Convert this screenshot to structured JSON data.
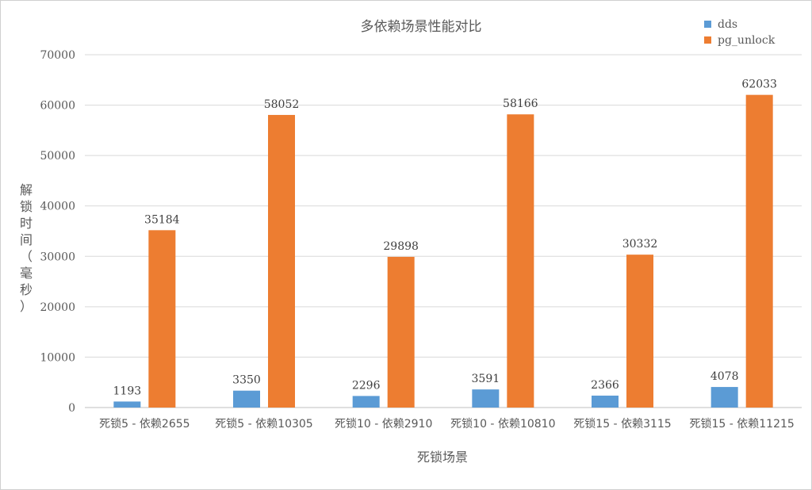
{
  "chart_data": {
    "type": "bar",
    "title": "多依赖场景性能对比",
    "xlabel": "死锁场景",
    "ylabel": "解锁时间（毫秒）",
    "categories": [
      "死锁5 - 依赖2655",
      "死锁5 - 依赖10305",
      "死锁10 - 依赖2910",
      "死锁10 - 依赖10810",
      "死锁15 - 依赖3115",
      "死锁15 - 依赖11215"
    ],
    "series": [
      {
        "name": "dds",
        "color": "#5b9bd5",
        "values": [
          1193,
          3350,
          2296,
          3591,
          2366,
          4078
        ]
      },
      {
        "name": "pg_unlock",
        "color": "#ed7d31",
        "values": [
          35184,
          58052,
          29898,
          58166,
          30332,
          62033
        ]
      }
    ],
    "ylim": [
      0,
      70000
    ],
    "yticks": [
      0,
      10000,
      20000,
      30000,
      40000,
      50000,
      60000,
      70000
    ],
    "grid": true,
    "legend": "top-right",
    "data_labels": true
  }
}
